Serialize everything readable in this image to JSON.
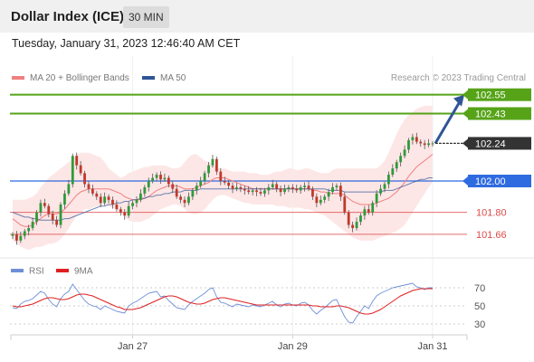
{
  "header": {
    "title": "Dollar Index (ICE)",
    "timeframe": "30 MIN",
    "datetime": "Tuesday, January 31, 2023 12:46:40 AM CET"
  },
  "legend": {
    "ma20": "MA 20 + Bollinger Bands",
    "ma50": "MA 50",
    "credit": "Research © 2023 Trading Central",
    "rsi": "RSI",
    "ma9": "9MA"
  },
  "colors": {
    "ma20": "#f08080",
    "ma50": "#2f5597",
    "band_fill": "#fde0e0",
    "resistance": "#56a318",
    "pivot": "#2f6be0",
    "support": "#e04a4a",
    "current": "#333333",
    "candle": "#2f9a3a",
    "candle_down": "#c0392b",
    "rsi": "#6f8fd8",
    "rsi_ma": "#e02020",
    "arrow": "#2f5597"
  },
  "chart_data": [
    {
      "type": "candlestick",
      "title": "Dollar Index (ICE)",
      "timeframe": "30 MIN",
      "x_tick_labels": [
        "Jan 27",
        "Jan 29",
        "Jan 31"
      ],
      "ylim": [
        101.55,
        102.6
      ],
      "levels": [
        {
          "label": "102.55",
          "value": 102.55,
          "kind": "resistance"
        },
        {
          "label": "102.43",
          "value": 102.43,
          "kind": "resistance"
        },
        {
          "label": "102.24",
          "value": 102.24,
          "kind": "current"
        },
        {
          "label": "102.00",
          "value": 102.0,
          "kind": "pivot"
        },
        {
          "label": "101.80",
          "value": 101.8,
          "kind": "support"
        },
        {
          "label": "101.66",
          "value": 101.66,
          "kind": "support"
        }
      ],
      "close": [
        101.66,
        101.62,
        101.65,
        101.68,
        101.7,
        101.74,
        101.8,
        101.86,
        101.84,
        101.79,
        101.75,
        101.72,
        101.85,
        101.92,
        101.98,
        102.16,
        102.1,
        102.05,
        101.98,
        101.95,
        101.92,
        101.9,
        101.86,
        101.9,
        101.88,
        101.85,
        101.82,
        101.8,
        101.78,
        101.84,
        101.86,
        101.88,
        101.92,
        101.96,
        102.0,
        102.02,
        102.04,
        102.01,
        102.02,
        101.98,
        101.95,
        101.9,
        101.88,
        101.86,
        101.9,
        101.94,
        101.97,
        102.0,
        102.05,
        102.1,
        102.14,
        102.06,
        102.0,
        101.99,
        101.97,
        101.95,
        101.96,
        101.95,
        101.94,
        101.93,
        101.94,
        101.93,
        101.92,
        101.94,
        101.96,
        101.98,
        101.95,
        101.93,
        101.95,
        101.96,
        101.95,
        101.94,
        101.96,
        101.97,
        101.95,
        101.9,
        101.86,
        101.88,
        101.9,
        101.93,
        101.96,
        101.97,
        101.9,
        101.8,
        101.72,
        101.7,
        101.74,
        101.78,
        101.82,
        101.8,
        101.86,
        101.92,
        101.95,
        101.98,
        102.04,
        102.08,
        102.12,
        102.16,
        102.2,
        102.26,
        102.28,
        102.25,
        102.24,
        102.23,
        102.24,
        102.24
      ],
      "ma20": [
        101.76,
        101.74,
        101.72,
        101.71,
        101.71,
        101.72,
        101.74,
        101.76,
        101.78,
        101.79,
        101.79,
        101.79,
        101.8,
        101.82,
        101.85,
        101.88,
        101.91,
        101.93,
        101.94,
        101.95,
        101.95,
        101.95,
        101.95,
        101.95,
        101.95,
        101.94,
        101.93,
        101.92,
        101.9,
        101.89,
        101.88,
        101.88,
        101.88,
        101.89,
        101.9,
        101.92,
        101.94,
        101.95,
        101.96,
        101.97,
        101.97,
        101.97,
        101.96,
        101.95,
        101.95,
        101.95,
        101.96,
        101.97,
        101.98,
        101.99,
        102.01,
        102.02,
        102.02,
        102.02,
        102.01,
        102.0,
        101.99,
        101.98,
        101.97,
        101.96,
        101.95,
        101.95,
        101.95,
        101.95,
        101.95,
        101.95,
        101.95,
        101.95,
        101.95,
        101.95,
        101.95,
        101.95,
        101.95,
        101.95,
        101.95,
        101.94,
        101.94,
        101.93,
        101.93,
        101.92,
        101.92,
        101.92,
        101.92,
        101.91,
        101.89,
        101.87,
        101.86,
        101.85,
        101.85,
        101.85,
        101.85,
        101.86,
        101.87,
        101.88,
        101.89,
        101.91,
        101.93,
        101.96,
        101.99,
        102.03,
        102.06,
        102.09,
        102.11,
        102.13,
        102.15,
        102.17
      ],
      "bb_upper": [
        101.88,
        101.88,
        101.88,
        101.88,
        101.89,
        101.9,
        101.92,
        101.96,
        101.99,
        102.02,
        102.04,
        102.06,
        102.08,
        102.1,
        102.12,
        102.14,
        102.17,
        102.18,
        102.18,
        102.18,
        102.17,
        102.16,
        102.15,
        102.12,
        102.08,
        102.06,
        102.04,
        102.02,
        102.03,
        102.05,
        102.06,
        102.07,
        102.08,
        102.09,
        102.09,
        102.1,
        102.1,
        102.1,
        102.1,
        102.09,
        102.08,
        102.08,
        102.09,
        102.12,
        102.15,
        102.17,
        102.17,
        102.15,
        102.13,
        102.12,
        102.11,
        102.09,
        102.08,
        102.08,
        102.07,
        102.06,
        102.06,
        102.06,
        102.06,
        102.05,
        102.05,
        102.05,
        102.04,
        102.04,
        102.04,
        102.05,
        102.06,
        102.06,
        102.07,
        102.08,
        102.08,
        102.07,
        102.07,
        102.08,
        102.08,
        102.07,
        102.06,
        102.05,
        102.05,
        102.05,
        102.07,
        102.08,
        102.08,
        102.08,
        102.08,
        102.08,
        102.08,
        102.08,
        102.08,
        102.08,
        102.08,
        102.08,
        102.1,
        102.13,
        102.18,
        102.24,
        102.3,
        102.35,
        102.39,
        102.42,
        102.44,
        102.46,
        102.47,
        102.48,
        102.48,
        102.48
      ],
      "bb_lower": [
        101.62,
        101.6,
        101.58,
        101.57,
        101.56,
        101.57,
        101.58,
        101.58,
        101.59,
        101.6,
        101.6,
        101.61,
        101.63,
        101.66,
        101.7,
        101.74,
        101.78,
        101.8,
        101.82,
        101.82,
        101.83,
        101.84,
        101.84,
        101.85,
        101.84,
        101.83,
        101.82,
        101.8,
        101.77,
        101.75,
        101.74,
        101.74,
        101.74,
        101.75,
        101.76,
        101.78,
        101.8,
        101.82,
        101.83,
        101.84,
        101.85,
        101.85,
        101.84,
        101.82,
        101.8,
        101.79,
        101.79,
        101.8,
        101.82,
        101.85,
        101.88,
        101.9,
        101.91,
        101.91,
        101.9,
        101.89,
        101.88,
        101.87,
        101.86,
        101.86,
        101.85,
        101.85,
        101.85,
        101.85,
        101.85,
        101.85,
        101.84,
        101.84,
        101.84,
        101.83,
        101.83,
        101.83,
        101.83,
        101.82,
        101.82,
        101.81,
        101.8,
        101.79,
        101.78,
        101.76,
        101.74,
        101.72,
        101.7,
        101.68,
        101.66,
        101.64,
        101.63,
        101.62,
        101.62,
        101.62,
        101.62,
        101.63,
        101.64,
        101.65,
        101.66,
        101.67,
        101.68,
        101.7,
        101.72,
        101.76,
        101.8,
        101.84,
        101.88,
        101.92,
        101.96,
        101.99
      ],
      "ma50": [
        101.8,
        101.79,
        101.78,
        101.77,
        101.77,
        101.76,
        101.76,
        101.75,
        101.75,
        101.75,
        101.75,
        101.75,
        101.75,
        101.76,
        101.76,
        101.77,
        101.78,
        101.79,
        101.8,
        101.81,
        101.82,
        101.83,
        101.84,
        101.84,
        101.85,
        101.85,
        101.86,
        101.86,
        101.87,
        101.87,
        101.88,
        101.88,
        101.89,
        101.89,
        101.9,
        101.9,
        101.91,
        101.91,
        101.92,
        101.92,
        101.93,
        101.93,
        101.93,
        101.94,
        101.94,
        101.94,
        101.94,
        101.95,
        101.95,
        101.95,
        101.95,
        101.95,
        101.95,
        101.95,
        101.95,
        101.95,
        101.95,
        101.95,
        101.95,
        101.95,
        101.95,
        101.95,
        101.95,
        101.95,
        101.95,
        101.95,
        101.95,
        101.95,
        101.95,
        101.95,
        101.95,
        101.95,
        101.95,
        101.95,
        101.95,
        101.95,
        101.95,
        101.95,
        101.95,
        101.94,
        101.94,
        101.94,
        101.94,
        101.93,
        101.93,
        101.93,
        101.93,
        101.93,
        101.93,
        101.93,
        101.93,
        101.93,
        101.93,
        101.94,
        101.94,
        101.94,
        101.95,
        101.96,
        101.97,
        101.98,
        101.99,
        102.0,
        102.01,
        102.01,
        102.02,
        102.02
      ]
    },
    {
      "type": "line",
      "title": "RSI",
      "ylim": [
        20,
        78
      ],
      "y_tick_labels": [
        "70",
        "50",
        "30"
      ],
      "series": [
        {
          "name": "RSI",
          "values": [
            48,
            47,
            52,
            55,
            56,
            58,
            62,
            66,
            64,
            57,
            52,
            49,
            58,
            63,
            66,
            74,
            68,
            62,
            56,
            52,
            50,
            49,
            46,
            50,
            48,
            46,
            44,
            43,
            42,
            50,
            53,
            55,
            58,
            61,
            64,
            65,
            66,
            60,
            61,
            56,
            52,
            48,
            47,
            46,
            51,
            55,
            58,
            61,
            64,
            68,
            70,
            60,
            54,
            53,
            51,
            49,
            52,
            51,
            50,
            49,
            51,
            50,
            49,
            51,
            53,
            55,
            51,
            49,
            52,
            53,
            51,
            50,
            53,
            54,
            51,
            45,
            41,
            45,
            48,
            52,
            56,
            57,
            47,
            38,
            32,
            31,
            38,
            44,
            50,
            47,
            55,
            61,
            64,
            66,
            68,
            70,
            71,
            72,
            73,
            74,
            75,
            71,
            70,
            68,
            70,
            70
          ]
        },
        {
          "name": "9MA",
          "values": [
            50,
            49,
            49,
            50,
            51,
            52,
            54,
            56,
            58,
            59,
            59,
            58,
            57,
            57,
            58,
            60,
            62,
            63,
            63,
            62,
            61,
            59,
            57,
            55,
            53,
            51,
            49,
            48,
            46,
            46,
            46,
            47,
            48,
            50,
            52,
            54,
            56,
            58,
            60,
            61,
            61,
            60,
            58,
            56,
            54,
            53,
            52,
            52,
            53,
            55,
            57,
            58,
            59,
            59,
            58,
            57,
            56,
            55,
            54,
            53,
            52,
            51,
            51,
            51,
            51,
            51,
            51,
            51,
            51,
            51,
            51,
            51,
            51,
            51,
            51,
            50,
            50,
            49,
            49,
            49,
            49,
            50,
            50,
            49,
            48,
            46,
            44,
            42,
            41,
            41,
            42,
            44,
            46,
            49,
            52,
            55,
            58,
            61,
            63,
            65,
            67,
            68,
            69,
            69,
            69,
            69
          ]
        }
      ]
    }
  ]
}
